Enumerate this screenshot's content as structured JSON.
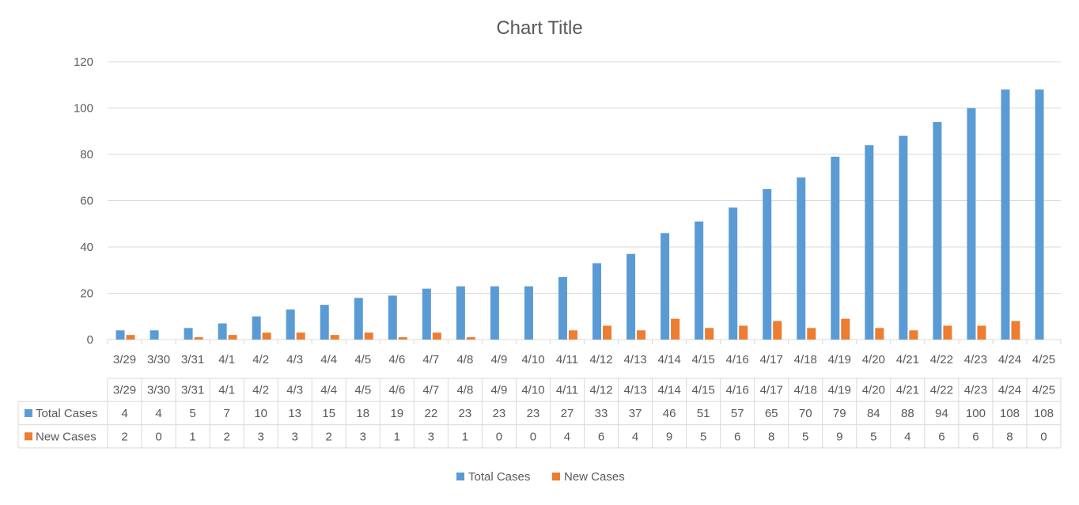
{
  "chart_data": {
    "type": "bar",
    "title": "Chart Title",
    "xlabel": "",
    "ylabel": "",
    "ylim": [
      0,
      120
    ],
    "ytick_step": 20,
    "grid": true,
    "legend_position": "bottom",
    "data_table": true,
    "categories": [
      "3/29",
      "3/30",
      "3/31",
      "4/1",
      "4/2",
      "4/3",
      "4/4",
      "4/5",
      "4/6",
      "4/7",
      "4/8",
      "4/9",
      "4/10",
      "4/11",
      "4/12",
      "4/13",
      "4/14",
      "4/15",
      "4/16",
      "4/17",
      "4/18",
      "4/19",
      "4/20",
      "4/21",
      "4/22",
      "4/23",
      "4/24",
      "4/25"
    ],
    "series": [
      {
        "name": "Total Cases",
        "color": "#5B9BD5",
        "values": [
          4,
          4,
          5,
          7,
          10,
          13,
          15,
          18,
          19,
          22,
          23,
          23,
          23,
          27,
          33,
          37,
          46,
          51,
          57,
          65,
          70,
          79,
          84,
          88,
          94,
          100,
          108,
          108
        ]
      },
      {
        "name": "New Cases",
        "color": "#ED7D31",
        "values": [
          2,
          0,
          1,
          2,
          3,
          3,
          2,
          3,
          1,
          3,
          1,
          0,
          0,
          4,
          6,
          4,
          9,
          5,
          6,
          8,
          5,
          9,
          5,
          4,
          6,
          6,
          8,
          0
        ]
      }
    ]
  }
}
